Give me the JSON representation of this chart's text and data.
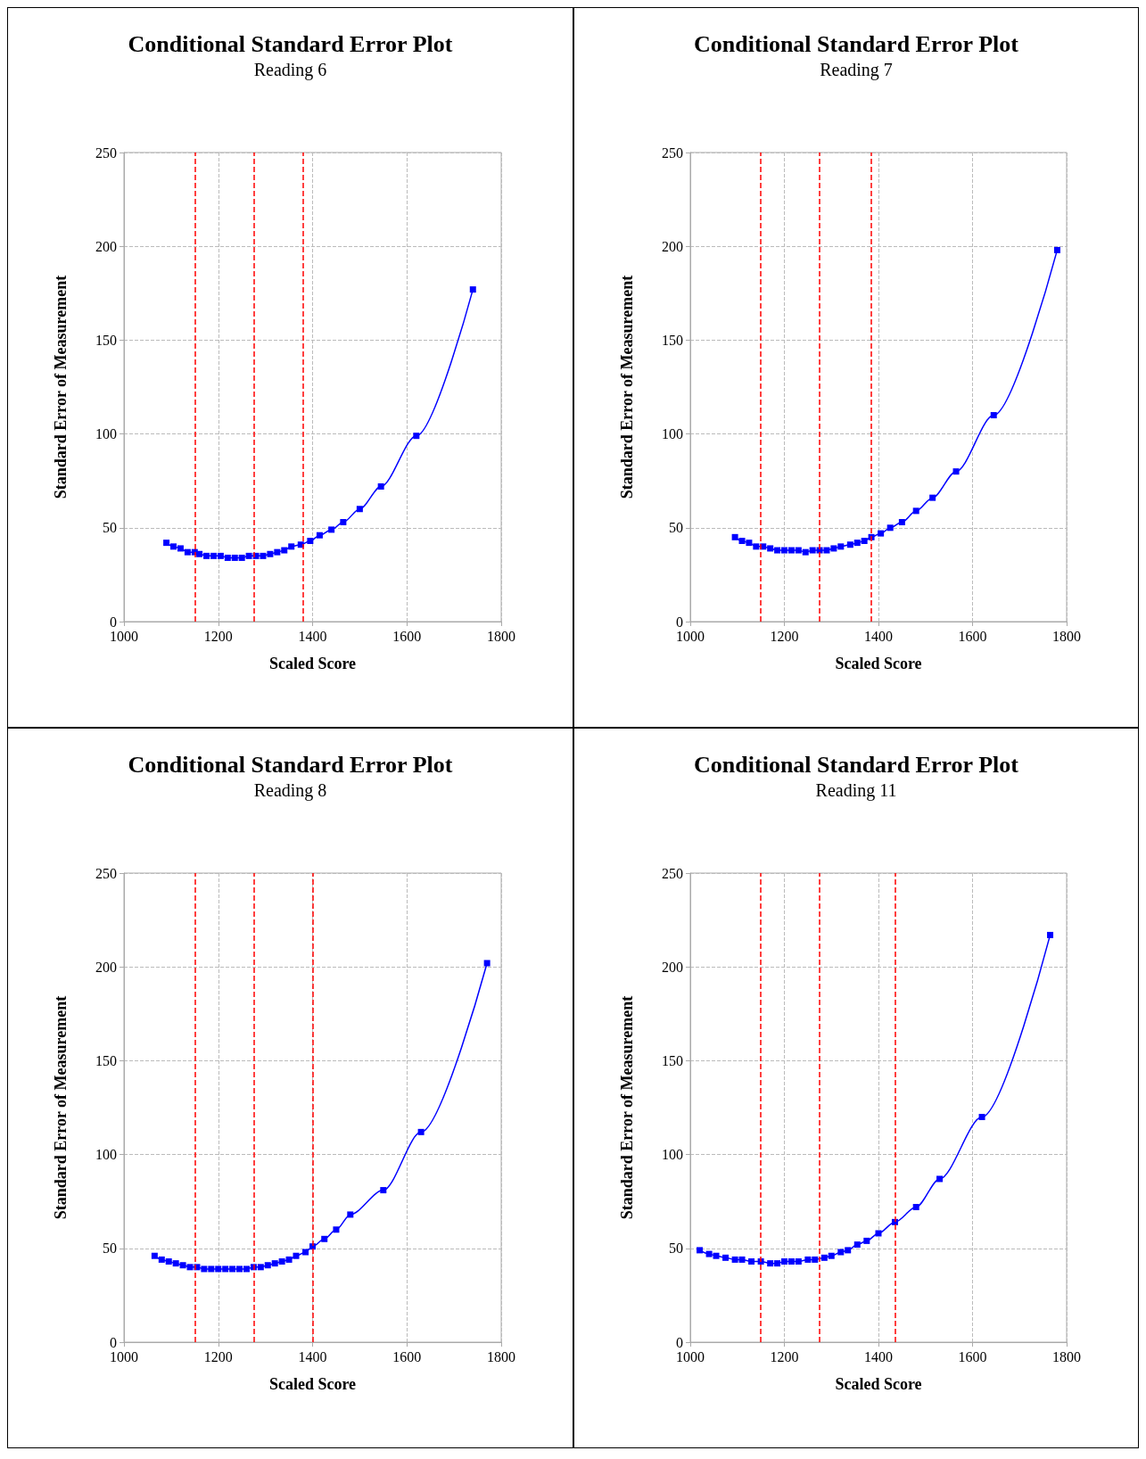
{
  "chart_data": [
    {
      "type": "line",
      "title": "Conditional Standard Error Plot",
      "subtitle": "Reading 6",
      "xlabel": "Scaled Score",
      "ylabel": "Standard Error of Measurement",
      "x": [
        1090,
        1105,
        1120,
        1135,
        1150,
        1160,
        1175,
        1190,
        1205,
        1220,
        1235,
        1250,
        1265,
        1280,
        1295,
        1310,
        1325,
        1340,
        1355,
        1375,
        1395,
        1415,
        1440,
        1465,
        1500,
        1545,
        1620,
        1740
      ],
      "series": [
        {
          "color": "#0000ff",
          "values": [
            42,
            40,
            39,
            37,
            37,
            36,
            35,
            35,
            35,
            34,
            34,
            34,
            35,
            35,
            35,
            36,
            37,
            38,
            40,
            41,
            43,
            46,
            49,
            53,
            60,
            72,
            99,
            177
          ]
        }
      ],
      "xlim": [
        1000,
        1800
      ],
      "xticks": [
        1000,
        1200,
        1400,
        1600,
        1800
      ],
      "ylim": [
        0,
        250
      ],
      "yticks": [
        0,
        50,
        100,
        150,
        200,
        250
      ],
      "grid": true,
      "marker": "square",
      "ref_lines": [
        {
          "axis": "x",
          "value": 1150,
          "color": "#ff0000",
          "line_style": "dashed"
        },
        {
          "axis": "x",
          "value": 1275,
          "color": "#ff0000",
          "line_style": "dashed"
        },
        {
          "axis": "x",
          "value": 1380,
          "color": "#ff0000",
          "line_style": "dashed"
        }
      ]
    },
    {
      "type": "line",
      "title": "Conditional Standard Error Plot",
      "subtitle": "Reading 7",
      "xlabel": "Scaled Score",
      "ylabel": "Standard Error of Measurement",
      "x": [
        1095,
        1110,
        1125,
        1140,
        1155,
        1170,
        1185,
        1200,
        1215,
        1230,
        1245,
        1260,
        1275,
        1290,
        1305,
        1320,
        1340,
        1355,
        1370,
        1385,
        1405,
        1425,
        1450,
        1480,
        1515,
        1565,
        1645,
        1780
      ],
      "series": [
        {
          "color": "#0000ff",
          "values": [
            45,
            43,
            42,
            40,
            40,
            39,
            38,
            38,
            38,
            38,
            37,
            38,
            38,
            38,
            39,
            40,
            41,
            42,
            43,
            45,
            47,
            50,
            53,
            59,
            66,
            80,
            110,
            198
          ]
        }
      ],
      "xlim": [
        1000,
        1800
      ],
      "xticks": [
        1000,
        1200,
        1400,
        1600,
        1800
      ],
      "ylim": [
        0,
        250
      ],
      "yticks": [
        0,
        50,
        100,
        150,
        200,
        250
      ],
      "grid": true,
      "marker": "square",
      "ref_lines": [
        {
          "axis": "x",
          "value": 1150,
          "color": "#ff0000",
          "line_style": "dashed"
        },
        {
          "axis": "x",
          "value": 1275,
          "color": "#ff0000",
          "line_style": "dashed"
        },
        {
          "axis": "x",
          "value": 1385,
          "color": "#ff0000",
          "line_style": "dashed"
        }
      ]
    },
    {
      "type": "line",
      "title": "Conditional Standard Error Plot",
      "subtitle": "Reading 8",
      "xlabel": "Scaled Score",
      "ylabel": "Standard Error of Measurement",
      "x": [
        1065,
        1080,
        1095,
        1110,
        1125,
        1140,
        1155,
        1170,
        1185,
        1200,
        1215,
        1230,
        1245,
        1260,
        1275,
        1290,
        1305,
        1320,
        1335,
        1350,
        1365,
        1385,
        1400,
        1425,
        1450,
        1480,
        1550,
        1630,
        1770
      ],
      "series": [
        {
          "color": "#0000ff",
          "values": [
            46,
            44,
            43,
            42,
            41,
            40,
            40,
            39,
            39,
            39,
            39,
            39,
            39,
            39,
            40,
            40,
            41,
            42,
            43,
            44,
            46,
            48,
            51,
            55,
            60,
            68,
            81,
            112,
            202
          ]
        }
      ],
      "xlim": [
        1000,
        1800
      ],
      "xticks": [
        1000,
        1200,
        1400,
        1600,
        1800
      ],
      "ylim": [
        0,
        250
      ],
      "yticks": [
        0,
        50,
        100,
        150,
        200,
        250
      ],
      "grid": true,
      "marker": "square",
      "ref_lines": [
        {
          "axis": "x",
          "value": 1150,
          "color": "#ff0000",
          "line_style": "dashed"
        },
        {
          "axis": "x",
          "value": 1275,
          "color": "#ff0000",
          "line_style": "dashed"
        },
        {
          "axis": "x",
          "value": 1400,
          "color": "#ff0000",
          "line_style": "dashed"
        }
      ]
    },
    {
      "type": "line",
      "title": "Conditional Standard Error Plot",
      "subtitle": "Reading 11",
      "xlabel": "Scaled Score",
      "ylabel": "Standard Error of Measurement",
      "x": [
        1020,
        1040,
        1055,
        1075,
        1095,
        1110,
        1130,
        1150,
        1170,
        1185,
        1200,
        1215,
        1230,
        1250,
        1265,
        1285,
        1300,
        1320,
        1335,
        1355,
        1375,
        1400,
        1435,
        1480,
        1530,
        1620,
        1765
      ],
      "series": [
        {
          "color": "#0000ff",
          "values": [
            49,
            47,
            46,
            45,
            44,
            44,
            43,
            43,
            42,
            42,
            43,
            43,
            43,
            44,
            44,
            45,
            46,
            48,
            49,
            52,
            54,
            58,
            64,
            72,
            87,
            120,
            217
          ]
        }
      ],
      "xlim": [
        1000,
        1800
      ],
      "xticks": [
        1000,
        1200,
        1400,
        1600,
        1800
      ],
      "ylim": [
        0,
        250
      ],
      "yticks": [
        0,
        50,
        100,
        150,
        200,
        250
      ],
      "grid": true,
      "marker": "square",
      "ref_lines": [
        {
          "axis": "x",
          "value": 1150,
          "color": "#ff0000",
          "line_style": "dashed"
        },
        {
          "axis": "x",
          "value": 1275,
          "color": "#ff0000",
          "line_style": "dashed"
        },
        {
          "axis": "x",
          "value": 1435,
          "color": "#ff0000",
          "line_style": "dashed"
        }
      ]
    }
  ]
}
